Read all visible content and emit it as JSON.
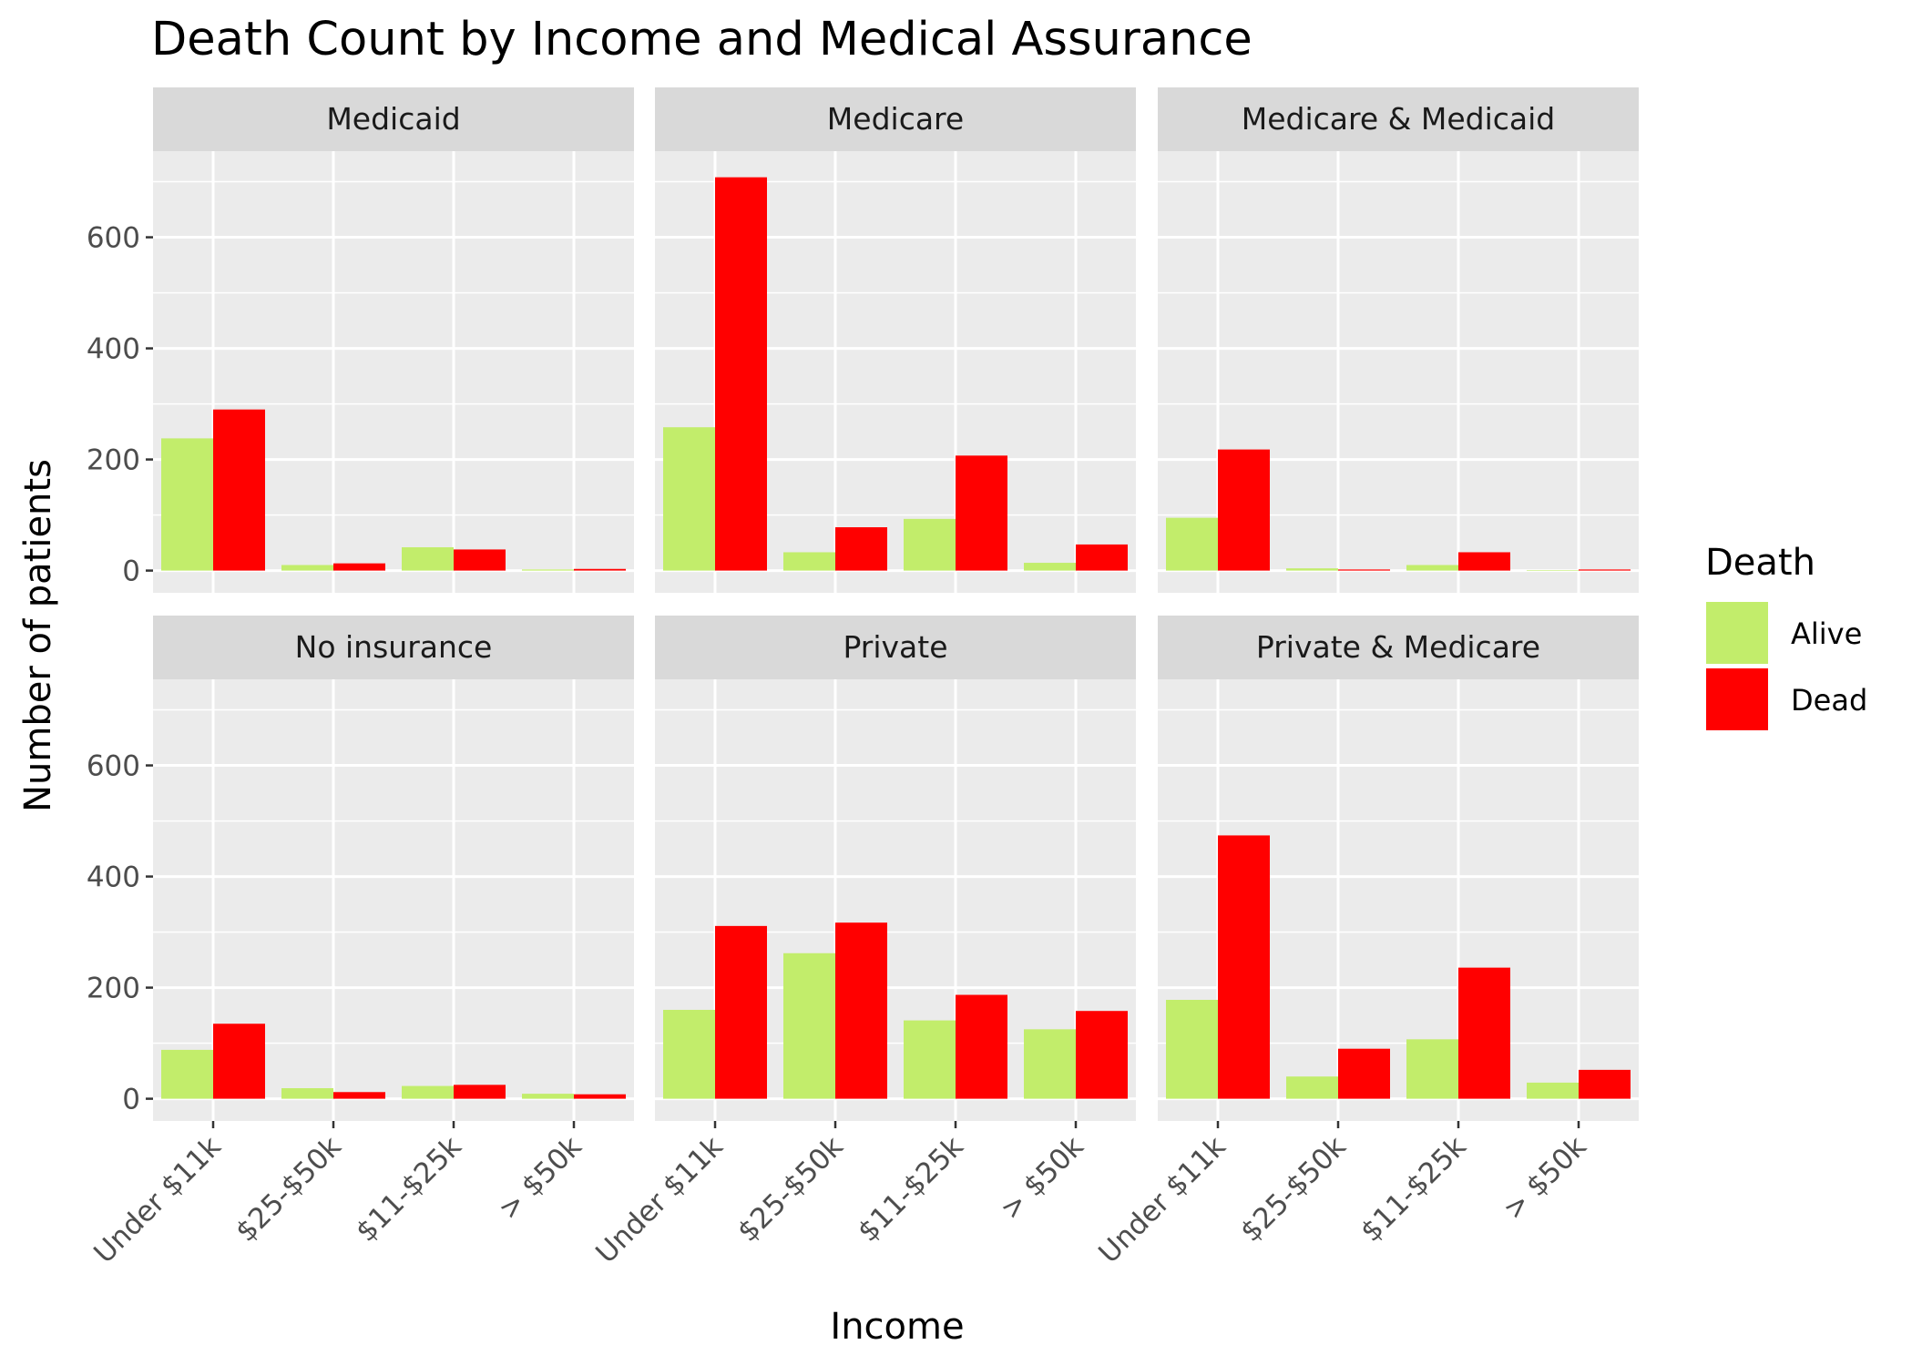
{
  "chart_data": {
    "type": "bar",
    "title": "Death Count by Income and Medical Assurance",
    "xlabel": "Income",
    "ylabel": "Number of patients",
    "categories": [
      "Under $11k",
      "$25-$50k",
      "$11-$25k",
      "> $50k"
    ],
    "ylim": [
      -40,
      755
    ],
    "yticks": [
      0,
      200,
      400,
      600
    ],
    "grid": true,
    "legend": {
      "title": "Death",
      "position": "right",
      "items": [
        {
          "label": "Alive",
          "color": "#c2ed6b"
        },
        {
          "label": "Dead",
          "color": "#ff0000"
        }
      ]
    },
    "facets": [
      {
        "name": "Medicaid",
        "series": [
          {
            "name": "Alive",
            "values": [
              238,
              10,
              42,
              2
            ]
          },
          {
            "name": "Dead",
            "values": [
              290,
              13,
              38,
              3
            ]
          }
        ]
      },
      {
        "name": "Medicare",
        "series": [
          {
            "name": "Alive",
            "values": [
              258,
              33,
              93,
              14
            ]
          },
          {
            "name": "Dead",
            "values": [
              708,
              78,
              207,
              47
            ]
          }
        ]
      },
      {
        "name": "Medicare & Medicaid",
        "series": [
          {
            "name": "Alive",
            "values": [
              95,
              4,
              10,
              1
            ]
          },
          {
            "name": "Dead",
            "values": [
              218,
              2,
              33,
              2
            ]
          }
        ]
      },
      {
        "name": "No insurance",
        "series": [
          {
            "name": "Alive",
            "values": [
              88,
              19,
              23,
              9
            ]
          },
          {
            "name": "Dead",
            "values": [
              135,
              12,
              25,
              8
            ]
          }
        ]
      },
      {
        "name": "Private",
        "series": [
          {
            "name": "Alive",
            "values": [
              160,
              262,
              141,
              125
            ]
          },
          {
            "name": "Dead",
            "values": [
              311,
              317,
              187,
              158
            ]
          }
        ]
      },
      {
        "name": "Private & Medicare",
        "series": [
          {
            "name": "Alive",
            "values": [
              178,
              40,
              107,
              29
            ]
          },
          {
            "name": "Dead",
            "values": [
              474,
              90,
              236,
              52
            ]
          }
        ]
      }
    ]
  }
}
